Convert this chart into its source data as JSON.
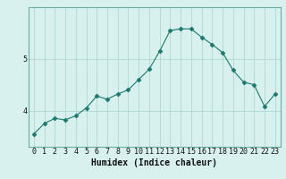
{
  "x": [
    0,
    1,
    2,
    3,
    4,
    5,
    6,
    7,
    8,
    9,
    10,
    11,
    12,
    13,
    14,
    15,
    16,
    17,
    18,
    19,
    20,
    21,
    22,
    23
  ],
  "y": [
    3.55,
    3.75,
    3.85,
    3.82,
    3.9,
    4.05,
    4.28,
    4.22,
    4.32,
    4.4,
    4.6,
    4.8,
    5.15,
    5.55,
    5.58,
    5.58,
    5.42,
    5.28,
    5.12,
    4.78,
    4.55,
    4.5,
    4.08,
    4.32
  ],
  "line_color": "#1a7a6e",
  "marker": "D",
  "marker_size": 2.5,
  "bg_color": "#d8f0ee",
  "grid_color": "#afd8d2",
  "xlabel": "Humidex (Indice chaleur)",
  "xlabel_fontsize": 7,
  "tick_fontsize": 6,
  "yticks": [
    4,
    5
  ],
  "ylim": [
    3.3,
    6.0
  ],
  "xlim": [
    -0.5,
    23.5
  ]
}
